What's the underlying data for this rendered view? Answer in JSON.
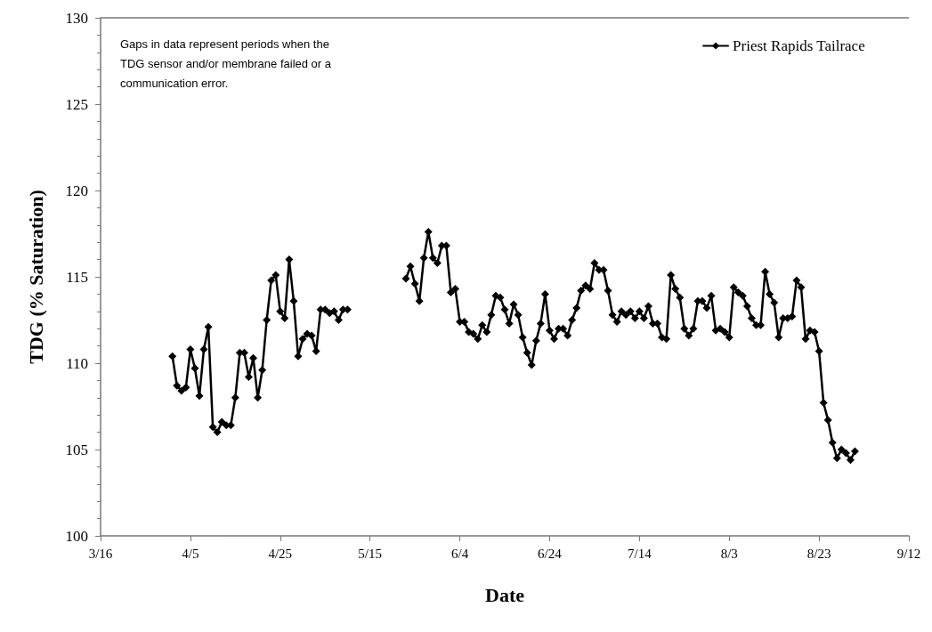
{
  "chart_data": {
    "type": "line",
    "xlabel": "Date",
    "ylabel": "TDG (% Saturation)",
    "annotations": [
      "Gaps in data represent periods when the TDG sensor and/or membrane failed or a communication error."
    ],
    "x": [
      "--04-01",
      "--04-02",
      "--04-03",
      "--04-04",
      "--04-05",
      "--04-06",
      "--04-07",
      "--04-08",
      "--04-09",
      "--04-10",
      "--04-11",
      "--04-12",
      "--04-13",
      "--04-14",
      "--04-15",
      "--04-16",
      "--04-17",
      "--04-18",
      "--04-19",
      "--04-20",
      "--04-21",
      "--04-22",
      "--04-23",
      "--04-24",
      "--04-25",
      "--04-26",
      "--04-27",
      "--04-28",
      "--04-29",
      "--04-30",
      "--05-01",
      "--05-02",
      "--05-03",
      "--05-04",
      "--05-05",
      "--05-06",
      "--05-07",
      "--05-08",
      "--05-09",
      "--05-10",
      "--05-11",
      "--05-23",
      "--05-24",
      "--05-25",
      "--05-26",
      "--05-27",
      "--05-28",
      "--05-29",
      "--05-30",
      "--05-31",
      "--06-01",
      "--06-02",
      "--06-03",
      "--06-04",
      "--06-05",
      "--06-06",
      "--06-07",
      "--06-08",
      "--06-09",
      "--06-10",
      "--06-11",
      "--06-12",
      "--06-13",
      "--06-14",
      "--06-15",
      "--06-16",
      "--06-17",
      "--06-18",
      "--06-19",
      "--06-20",
      "--06-21",
      "--06-22",
      "--06-23",
      "--06-24",
      "--06-25",
      "--06-26",
      "--06-27",
      "--06-28",
      "--06-29",
      "--06-30",
      "--07-01",
      "--07-02",
      "--07-03",
      "--07-04",
      "--07-05",
      "--07-06",
      "--07-07",
      "--07-08",
      "--07-09",
      "--07-10",
      "--07-11",
      "--07-12",
      "--07-13",
      "--07-14",
      "--07-15",
      "--07-16",
      "--07-17",
      "--07-18",
      "--07-19",
      "--07-20",
      "--07-21",
      "--07-22",
      "--07-23",
      "--07-24",
      "--07-25",
      "--07-26",
      "--07-27",
      "--07-28",
      "--07-29",
      "--07-30",
      "--07-31",
      "--08-01",
      "--08-02",
      "--08-03",
      "--08-04",
      "--08-05",
      "--08-06",
      "--08-07",
      "--08-08",
      "--08-09",
      "--08-10",
      "--08-11",
      "--08-12",
      "--08-13",
      "--08-14",
      "--08-15",
      "--08-16",
      "--08-17",
      "--08-18",
      "--08-19",
      "--08-20",
      "--08-21",
      "--08-22",
      "--08-23",
      "--08-24",
      "--08-25",
      "--08-26",
      "--08-27",
      "--08-28",
      "--08-29",
      "--08-30",
      "--08-31"
    ],
    "series": [
      {
        "name": "Priest Rapids Tailrace",
        "color": "#000000",
        "values": [
          110.4,
          108.7,
          108.4,
          108.6,
          110.8,
          109.7,
          108.1,
          110.8,
          112.1,
          106.3,
          106.0,
          106.6,
          106.4,
          106.4,
          108.0,
          110.6,
          110.6,
          109.2,
          110.3,
          108.0,
          109.6,
          112.5,
          114.8,
          115.1,
          113.0,
          112.6,
          116.0,
          113.6,
          110.4,
          111.4,
          111.7,
          111.6,
          110.7,
          113.1,
          113.1,
          112.9,
          113.0,
          112.5,
          113.1,
          113.1,
          null,
          114.9,
          115.6,
          114.6,
          113.6,
          116.1,
          117.6,
          116.1,
          115.8,
          116.8,
          116.8,
          114.1,
          114.3,
          112.4,
          112.4,
          111.8,
          111.7,
          111.4,
          112.2,
          111.8,
          112.8,
          113.9,
          113.8,
          113.1,
          112.3,
          113.4,
          112.8,
          111.5,
          110.6,
          109.9,
          111.3,
          112.3,
          114.0,
          111.9,
          111.4,
          112.0,
          112.0,
          111.6,
          112.5,
          113.2,
          114.2,
          114.5,
          114.3,
          115.8,
          115.4,
          115.4,
          114.2,
          112.8,
          112.4,
          113.0,
          112.8,
          113.0,
          112.6,
          113.0,
          112.6,
          113.3,
          112.3,
          112.3,
          111.5,
          111.4,
          115.1,
          114.3,
          113.8,
          112.0,
          111.6,
          112.0,
          113.6,
          113.6,
          113.2,
          113.9,
          111.9,
          112.0,
          111.8,
          111.5,
          114.4,
          114.1,
          113.9,
          113.3,
          112.6,
          112.2,
          112.2,
          115.3,
          114.0,
          113.5,
          111.5,
          112.6,
          112.6,
          112.7,
          114.8,
          114.4,
          111.4,
          111.9,
          111.8,
          110.7,
          107.7,
          106.7,
          105.4,
          104.5,
          105.0,
          104.8,
          104.4,
          104.9
        ]
      }
    ],
    "xlim": [
      "--03-16",
      "--09-12"
    ],
    "xticks": [
      {
        "value": "--03-16",
        "label": "3/16"
      },
      {
        "value": "--04-05",
        "label": "4/5"
      },
      {
        "value": "--04-25",
        "label": "4/25"
      },
      {
        "value": "--05-15",
        "label": "5/15"
      },
      {
        "value": "--06-04",
        "label": "6/4"
      },
      {
        "value": "--06-24",
        "label": "6/24"
      },
      {
        "value": "--07-14",
        "label": "7/14"
      },
      {
        "value": "--08-03",
        "label": "8/3"
      },
      {
        "value": "--08-23",
        "label": "8/23"
      },
      {
        "value": "--09-12",
        "label": "9/12"
      }
    ],
    "ylim": [
      100,
      130
    ],
    "yticks": [
      100,
      105,
      110,
      115,
      120,
      125,
      130
    ],
    "grid": false,
    "legend": "top right",
    "marker": "diamond",
    "line_style": "solid"
  }
}
